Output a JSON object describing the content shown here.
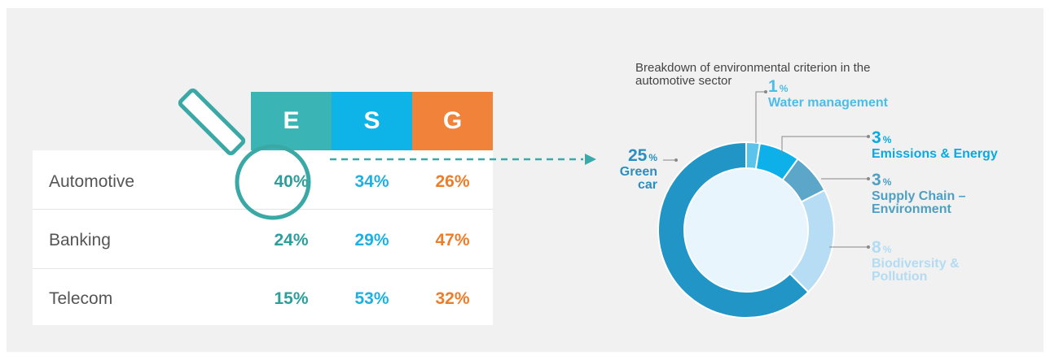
{
  "table": {
    "columns": [
      "E",
      "S",
      "G"
    ],
    "rows": [
      [
        "Automotive",
        "40%",
        "34%",
        "26%"
      ],
      [
        "Banking",
        "24%",
        "29%",
        "47%"
      ],
      [
        "Telecom",
        "15%",
        "53%",
        "32%"
      ]
    ]
  },
  "chart_data": {
    "type": "donut",
    "title": "Breakdown of environmental criterion in the automotive sector",
    "categories": [
      "Water management",
      "Emissions & Energy",
      "Supply Chain – Environment",
      "Biodiversity & Pollution",
      "Green car"
    ],
    "values": [
      1,
      3,
      3,
      8,
      25
    ],
    "value_labels": [
      "1%",
      "3%",
      "3%",
      "8%",
      "25%"
    ],
    "colors": [
      "#5cc4ea",
      "#0eb0e9",
      "#5ba6c9",
      "#b6ddf4",
      "#2196c6"
    ]
  }
}
